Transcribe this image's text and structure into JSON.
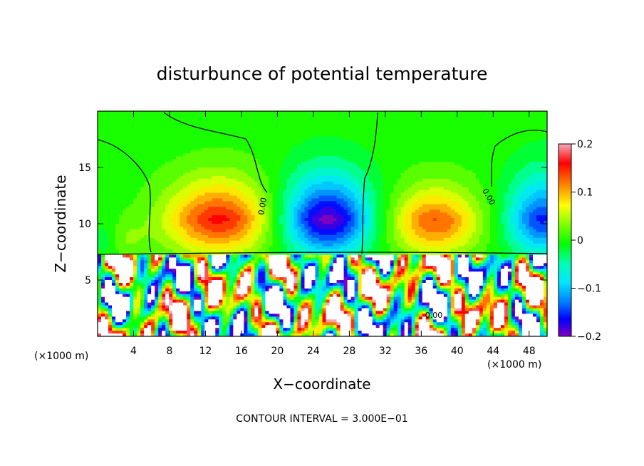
{
  "chart_data": {
    "type": "heatmap",
    "title": "disturbunce of potential temperature",
    "xlabel": "X−coordinate",
    "ylabel": "Z−coordinate",
    "x_unit_left": "(×1000 m)",
    "x_unit_right": "(×1000 m)",
    "xlim": [
      0,
      50
    ],
    "ylim": [
      0,
      20
    ],
    "x_ticks": [
      4,
      8,
      12,
      16,
      20,
      24,
      28,
      32,
      36,
      40,
      44,
      48
    ],
    "y_ticks": [
      5,
      10,
      15
    ],
    "colorbar": {
      "range": [
        -0.2,
        0.2
      ],
      "ticks": [
        0.2,
        0.1,
        0,
        -0.1,
        -0.2
      ],
      "tick_labels": [
        "0.2",
        "0.1",
        "0",
        "−0.1",
        "−0.2"
      ]
    },
    "contour_label": "0.00",
    "note": "CONTOUR INTERVAL = 3.000E−01"
  }
}
